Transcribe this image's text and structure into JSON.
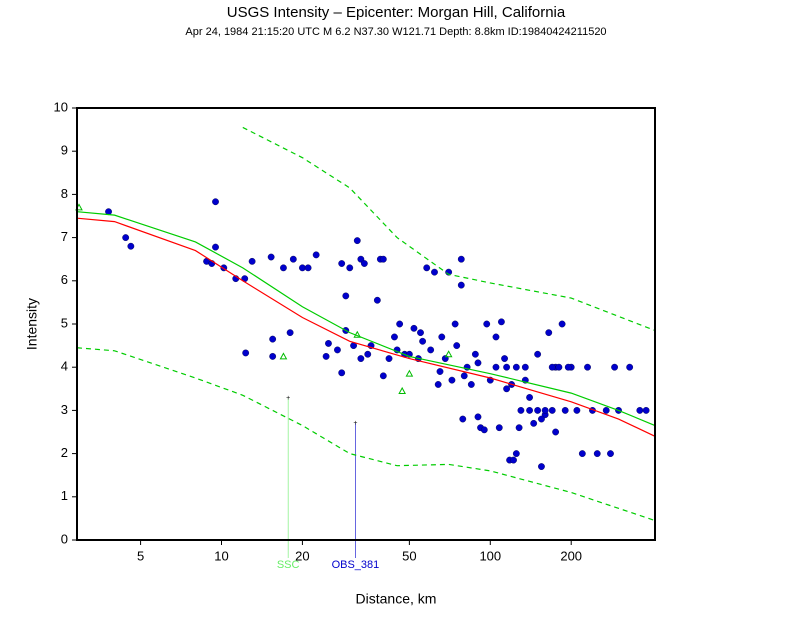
{
  "chart_data": {
    "type": "scatter",
    "title": "USGS Intensity –  Epicenter: Morgan Hill, California",
    "subtitle": "Apr 24, 1984 21:15:20 UTC   M 6.2   N37.30 W121.71   Depth: 8.8km   ID:19840424211520",
    "xlabel": "Distance, km",
    "ylabel": "Intensity",
    "xscale": "log",
    "xlim": [
      2.9,
      410
    ],
    "ylim": [
      0,
      10
    ],
    "xticks": [
      5,
      10,
      20,
      50,
      100,
      200
    ],
    "yticks": [
      0,
      1,
      2,
      3,
      4,
      5,
      6,
      7,
      8,
      9,
      10
    ],
    "series": [
      {
        "kind": "points",
        "marker": "circle",
        "color": "#0000cc",
        "x": [
          3.8,
          4.4,
          4.6,
          9.5,
          9.5,
          8.8,
          9.2,
          10.2,
          11.3,
          12.2,
          13,
          15.3,
          17,
          18.5,
          20,
          21,
          22.5,
          12.3,
          15.5,
          15.5,
          18,
          24.5,
          25,
          27,
          28,
          28,
          29,
          29,
          30,
          32,
          33,
          34,
          31,
          33,
          35,
          36,
          38,
          39,
          40,
          40,
          42,
          44,
          46,
          48,
          50,
          52,
          54,
          55,
          58,
          60,
          62,
          64,
          66,
          68,
          70,
          72,
          74,
          75,
          78,
          78,
          79,
          82,
          85,
          88,
          90,
          92,
          95,
          97,
          100,
          105,
          108,
          110,
          113,
          115,
          118,
          122,
          125,
          128,
          130,
          135,
          140,
          145,
          150,
          155,
          160,
          165,
          170,
          175,
          185,
          190,
          200,
          210,
          220,
          230,
          240,
          250,
          270,
          280,
          290,
          300,
          330,
          360,
          380,
          105,
          115,
          125,
          140,
          150,
          160,
          170,
          180,
          195,
          45,
          56,
          65,
          80,
          90,
          120,
          135,
          155,
          175
        ],
        "values": [
          7.6,
          7.0,
          6.8,
          7.83,
          6.78,
          6.45,
          6.4,
          6.3,
          6.05,
          6.05,
          6.45,
          6.55,
          6.3,
          6.5,
          6.3,
          6.3,
          6.6,
          4.33,
          4.65,
          4.25,
          4.8,
          4.25,
          4.55,
          4.4,
          6.4,
          3.87,
          4.85,
          5.65,
          6.3,
          6.93,
          6.5,
          6.4,
          4.5,
          4.2,
          4.3,
          4.5,
          5.55,
          6.5,
          6.5,
          3.8,
          4.2,
          4.7,
          5.0,
          4.3,
          4.3,
          4.9,
          4.2,
          4.8,
          6.3,
          4.4,
          6.2,
          3.6,
          4.7,
          4.2,
          6.2,
          3.7,
          5.0,
          4.5,
          6.5,
          5.9,
          2.8,
          4.0,
          3.6,
          4.3,
          2.85,
          2.6,
          2.55,
          5.0,
          3.7,
          4.7,
          2.6,
          5.05,
          4.2,
          3.5,
          1.85,
          1.85,
          2.0,
          2.6,
          3.0,
          4.0,
          3.3,
          2.7,
          4.3,
          1.7,
          2.9,
          4.8,
          3.0,
          4.0,
          5.0,
          3.0,
          4.0,
          3.0,
          2.0,
          4.0,
          3.0,
          2.0,
          3.0,
          2.0,
          4.0,
          3.0,
          4.0,
          3.0,
          3.0,
          4.0,
          4.0,
          4.0,
          3.0,
          3.0,
          3.0,
          4.0,
          4.0,
          4.0,
          4.4,
          4.6,
          3.9,
          3.8,
          4.1,
          3.6,
          3.7,
          2.8,
          2.5
        ]
      },
      {
        "kind": "points",
        "marker": "triangle",
        "color": "#00bb00",
        "x": [
          2.95,
          17,
          32,
          47,
          50,
          70
        ],
        "values": [
          7.7,
          4.25,
          4.75,
          3.45,
          3.85,
          4.3
        ]
      },
      {
        "kind": "line",
        "color": "#ff0000",
        "dash": false,
        "x": [
          2.9,
          4,
          8,
          12,
          20,
          30,
          50,
          100,
          200,
          300,
          410
        ],
        "values": [
          7.45,
          7.37,
          6.7,
          6.0,
          5.15,
          4.6,
          4.2,
          3.75,
          3.2,
          2.8,
          2.4
        ]
      },
      {
        "kind": "line",
        "color": "#00cc00",
        "dash": false,
        "x": [
          2.9,
          4,
          8,
          12,
          20,
          30,
          50,
          100,
          200,
          300,
          410
        ],
        "values": [
          7.6,
          7.52,
          6.9,
          6.3,
          5.4,
          4.8,
          4.25,
          3.85,
          3.4,
          3.0,
          2.65
        ]
      },
      {
        "kind": "line",
        "color": "#00cc00",
        "dash": true,
        "x": [
          12,
          20,
          30,
          45,
          70,
          100,
          200,
          410
        ],
        "values": [
          9.55,
          8.85,
          8.15,
          7.0,
          6.15,
          5.95,
          5.6,
          4.85
        ]
      },
      {
        "kind": "line",
        "color": "#00cc00",
        "dash": true,
        "x": [
          2.9,
          4,
          8,
          12,
          20,
          30,
          45,
          70,
          100,
          200,
          410
        ],
        "values": [
          4.45,
          4.38,
          3.75,
          3.35,
          2.65,
          2.0,
          1.72,
          1.75,
          1.6,
          1.1,
          0.45
        ]
      }
    ],
    "stations": [
      {
        "name": "SSC",
        "x": 17.7,
        "y": 3.28,
        "color": "#66ee66"
      },
      {
        "name": "OBS_381",
        "x": 31.5,
        "y": 2.7,
        "color": "#0000cc"
      }
    ]
  }
}
